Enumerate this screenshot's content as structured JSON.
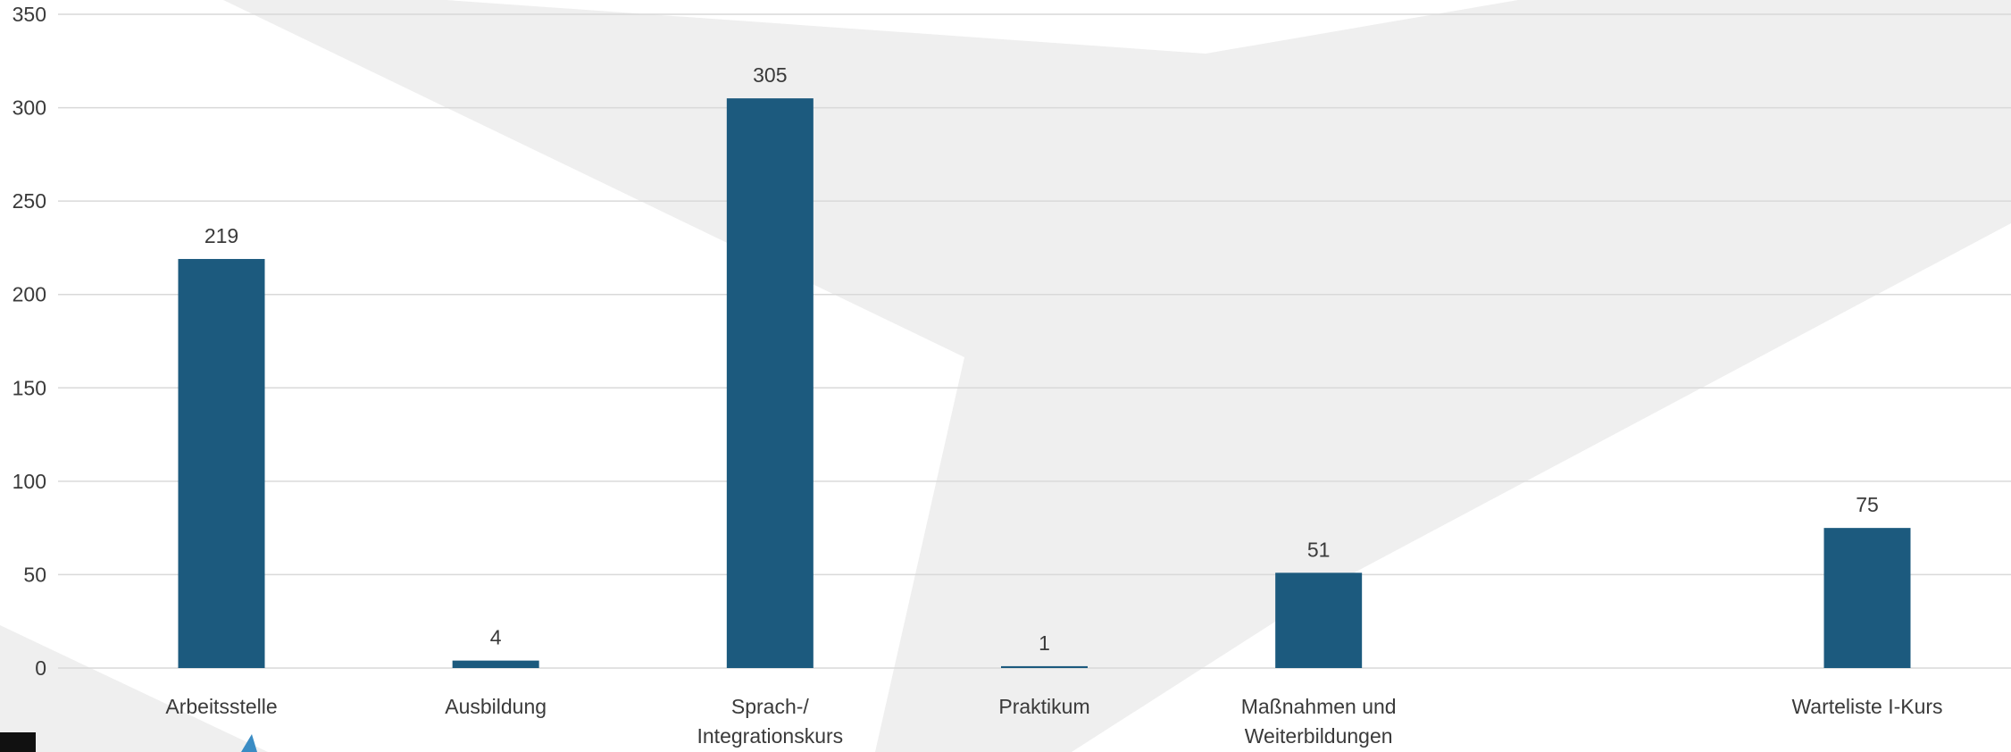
{
  "chart_data": {
    "type": "bar",
    "categories": [
      [
        "Arbeitsstelle"
      ],
      [
        "Ausbildung"
      ],
      [
        "Sprach-/",
        "Integrationskurs"
      ],
      [
        "Praktikum"
      ],
      [
        "Maßnahmen und",
        "Weiterbildungen"
      ],
      [
        ""
      ],
      [
        "Warteliste I-Kurs"
      ]
    ],
    "values": [
      219,
      4,
      305,
      1,
      51,
      null,
      75
    ],
    "data_labels": [
      "219",
      "4",
      "305",
      "1",
      "51",
      "",
      "75"
    ],
    "ylim": [
      0,
      350
    ],
    "yticks": [
      0,
      50,
      100,
      150,
      200,
      250,
      300,
      350
    ],
    "grid": true,
    "legend": "none",
    "title": "",
    "xlabel": "",
    "ylabel": ""
  },
  "colors": {
    "bar": "#1c5a7e",
    "grid": "#d9d9d9",
    "watermark": "#efefef",
    "text": "#3a3a3a"
  }
}
